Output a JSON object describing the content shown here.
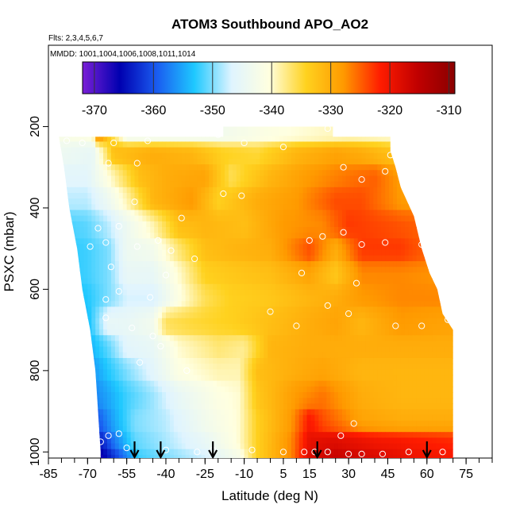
{
  "chart_data": {
    "type": "heatmap",
    "title": "ATOM3 Southbound APO_AO2",
    "flights_note": "Flts: 2,3,4,5,6,7",
    "dates_note": "MMDD: 1001,1004,1006,1008,1011,1014",
    "xlabel": "Latitude (deg N)",
    "ylabel": "PSXC (mbar)",
    "xlim": [
      -85,
      85
    ],
    "ylim": [
      1015,
      0
    ],
    "x_tick_labels": [
      "-85",
      "-70",
      "-55",
      "-40",
      "-25",
      "-10",
      "5",
      "15",
      "30",
      "45",
      "60",
      "75"
    ],
    "x_tick_values": [
      -85,
      -70,
      -55,
      -40,
      -25,
      -10,
      5,
      15,
      30,
      45,
      60,
      75
    ],
    "y_tick_labels": [
      "200",
      "400",
      "600",
      "800",
      "1000"
    ],
    "y_tick_values": [
      200,
      400,
      600,
      800,
      1000
    ],
    "colorbar": {
      "range": [
        -372,
        -309
      ],
      "tick_labels": [
        "-370",
        "-360",
        "-350",
        "-340",
        "-330",
        "-320",
        "-310"
      ],
      "tick_values": [
        -370,
        -360,
        -350,
        -340,
        -330,
        -320,
        -310
      ],
      "colors": [
        "#7a1fd6",
        "#0000b0",
        "#1a5cf0",
        "#1ec8ff",
        "#dff4ff",
        "#ffffe0",
        "#ffd21f",
        "#ff9a00",
        "#ff1c00",
        "#c00000",
        "#8a0000"
      ]
    },
    "arrow_latitudes": [
      -52,
      -42,
      -22,
      18,
      60
    ],
    "ceiling_profile": [
      {
        "lat": -68,
        "p": 225
      },
      {
        "lat": -50,
        "p": 225
      },
      {
        "lat": -35,
        "p": 225
      },
      {
        "lat": -18,
        "p": 225
      },
      {
        "lat": -18,
        "p": 200
      },
      {
        "lat": 24,
        "p": 200
      },
      {
        "lat": 24,
        "p": 225
      },
      {
        "lat": 46,
        "p": 225
      },
      {
        "lat": 46,
        "p": 260
      },
      {
        "lat": 48,
        "p": 300
      },
      {
        "lat": 50,
        "p": 350
      },
      {
        "lat": 55,
        "p": 420
      },
      {
        "lat": 58,
        "p": 500
      },
      {
        "lat": 61,
        "p": 560
      },
      {
        "lat": 64,
        "p": 600
      },
      {
        "lat": 66,
        "p": 660
      },
      {
        "lat": 70,
        "p": 700
      }
    ],
    "south_edge_profile": [
      {
        "p": 225,
        "lat": -81
      },
      {
        "p": 300,
        "lat": -79
      },
      {
        "p": 400,
        "lat": -77
      },
      {
        "p": 500,
        "lat": -74
      },
      {
        "p": 600,
        "lat": -72
      },
      {
        "p": 700,
        "lat": -69
      },
      {
        "p": 800,
        "lat": -67
      },
      {
        "p": 900,
        "lat": -66
      },
      {
        "p": 1000,
        "lat": -65
      }
    ],
    "sample_points": [
      {
        "lat": -78,
        "p": 235
      },
      {
        "lat": -72,
        "p": 240
      },
      {
        "lat": -60,
        "p": 240
      },
      {
        "lat": -47,
        "p": 235
      },
      {
        "lat": -62,
        "p": 290
      },
      {
        "lat": -51,
        "p": 290
      },
      {
        "lat": -20,
        "p": 220
      },
      {
        "lat": -10,
        "p": 240
      },
      {
        "lat": 5,
        "p": 250
      },
      {
        "lat": 22,
        "p": 205
      },
      {
        "lat": -18,
        "p": 365
      },
      {
        "lat": -11,
        "p": 370
      },
      {
        "lat": 28,
        "p": 300
      },
      {
        "lat": 35,
        "p": 330
      },
      {
        "lat": 44,
        "p": 310
      },
      {
        "lat": -52,
        "p": 385
      },
      {
        "lat": -58,
        "p": 445
      },
      {
        "lat": -34,
        "p": 425
      },
      {
        "lat": -66,
        "p": 450
      },
      {
        "lat": -69,
        "p": 495
      },
      {
        "lat": -63,
        "p": 485
      },
      {
        "lat": -51,
        "p": 495
      },
      {
        "lat": -43,
        "p": 480
      },
      {
        "lat": -38,
        "p": 505
      },
      {
        "lat": 15,
        "p": 480
      },
      {
        "lat": 20,
        "p": 470
      },
      {
        "lat": 28,
        "p": 460
      },
      {
        "lat": 35,
        "p": 490
      },
      {
        "lat": 44,
        "p": 485
      },
      {
        "lat": 58,
        "p": 490
      },
      {
        "lat": 68,
        "p": 445
      },
      {
        "lat": -29,
        "p": 525
      },
      {
        "lat": -61,
        "p": 545
      },
      {
        "lat": -40,
        "p": 565
      },
      {
        "lat": 12,
        "p": 560
      },
      {
        "lat": 33,
        "p": 585
      },
      {
        "lat": -63,
        "p": 625
      },
      {
        "lat": -58,
        "p": 605
      },
      {
        "lat": -46,
        "p": 620
      },
      {
        "lat": 0,
        "p": 655
      },
      {
        "lat": 22,
        "p": 640
      },
      {
        "lat": 30,
        "p": 660
      },
      {
        "lat": -63,
        "p": 670
      },
      {
        "lat": -53,
        "p": 695
      },
      {
        "lat": -45,
        "p": 715
      },
      {
        "lat": 10,
        "p": 690
      },
      {
        "lat": 48,
        "p": 690
      },
      {
        "lat": 58,
        "p": 690
      },
      {
        "lat": 68,
        "p": 675
      },
      {
        "lat": -42,
        "p": 740
      },
      {
        "lat": -50,
        "p": 780
      },
      {
        "lat": -32,
        "p": 800
      },
      {
        "lat": 32,
        "p": 930
      },
      {
        "lat": 27,
        "p": 960
      },
      {
        "lat": -67,
        "p": 950
      },
      {
        "lat": -62,
        "p": 960
      },
      {
        "lat": -58,
        "p": 955
      },
      {
        "lat": -65,
        "p": 975
      },
      {
        "lat": -55,
        "p": 990
      },
      {
        "lat": -40,
        "p": 995
      },
      {
        "lat": -28,
        "p": 1000
      },
      {
        "lat": -22,
        "p": 995
      },
      {
        "lat": -7,
        "p": 995
      },
      {
        "lat": 5,
        "p": 1000
      },
      {
        "lat": 13,
        "p": 1000
      },
      {
        "lat": 17,
        "p": 1000
      },
      {
        "lat": 22,
        "p": 1000
      },
      {
        "lat": 30,
        "p": 1005
      },
      {
        "lat": 35,
        "p": 1005
      },
      {
        "lat": 43,
        "p": 1005
      },
      {
        "lat": 53,
        "p": 1000
      },
      {
        "lat": 66,
        "p": 1000
      },
      {
        "lat": 65,
        "p": 580
      },
      {
        "lat": 46,
        "p": 270
      }
    ],
    "field_rows": [
      {
        "p": 225,
        "lat": [
          -80,
          -68,
          -66,
          -55,
          -40,
          -18,
          0,
          30,
          50,
          70
        ],
        "val": [
          -342,
          -341,
          -327,
          -343,
          -343,
          -343,
          -341,
          -339,
          -340,
          -341
        ]
      },
      {
        "p": 260,
        "lat": [
          -80,
          -68,
          -60,
          -45,
          -30,
          -18,
          -5,
          10,
          25,
          35,
          50,
          70
        ],
        "val": [
          -344,
          -345,
          -332,
          -330,
          -331,
          -334,
          -335,
          -331,
          -329,
          -330,
          -333,
          -334
        ]
      },
      {
        "p": 320,
        "lat": [
          -80,
          -70,
          -60,
          -50,
          -40,
          -25,
          -15,
          0,
          15,
          30,
          40,
          55,
          70
        ],
        "val": [
          -346,
          -346,
          -339,
          -332,
          -330,
          -329,
          -336,
          -331,
          -328,
          -326,
          -325,
          -330,
          -331
        ]
      },
      {
        "p": 380,
        "lat": [
          -80,
          -70,
          -62,
          -55,
          -45,
          -30,
          -20,
          -5,
          10,
          25,
          35,
          50,
          70
        ],
        "val": [
          -348,
          -348,
          -344,
          -339,
          -331,
          -328,
          -334,
          -330,
          -328,
          -324,
          -324,
          -328,
          -329
        ]
      },
      {
        "p": 440,
        "lat": [
          -80,
          -70,
          -62,
          -55,
          -45,
          -35,
          -25,
          -10,
          5,
          20,
          30,
          45,
          70
        ],
        "val": [
          -352,
          -351,
          -348,
          -344,
          -339,
          -332,
          -331,
          -332,
          -328,
          -327,
          -323,
          -324,
          -326
        ]
      },
      {
        "p": 500,
        "lat": [
          -80,
          -70,
          -62,
          -55,
          -45,
          -35,
          -25,
          -15,
          0,
          15,
          25,
          35,
          50,
          70
        ],
        "val": [
          -353,
          -352,
          -350,
          -344,
          -343,
          -337,
          -332,
          -331,
          -330,
          -324,
          -330,
          -323,
          -323,
          -327
        ]
      },
      {
        "p": 560,
        "lat": [
          -80,
          -70,
          -62,
          -55,
          -45,
          -35,
          -25,
          -15,
          0,
          15,
          25,
          35,
          50,
          70
        ],
        "val": [
          -353,
          -352,
          -350,
          -345,
          -345,
          -340,
          -334,
          -333,
          -332,
          -329,
          -333,
          -327,
          -327,
          -328
        ]
      },
      {
        "p": 620,
        "lat": [
          -80,
          -70,
          -62,
          -55,
          -45,
          -35,
          -25,
          -15,
          0,
          15,
          25,
          35,
          50,
          70
        ],
        "val": [
          -354,
          -353,
          -350,
          -347,
          -347,
          -341,
          -336,
          -334,
          -333,
          -331,
          -330,
          -328,
          -327,
          -327
        ]
      },
      {
        "p": 680,
        "lat": [
          -80,
          -70,
          -62,
          -55,
          -45,
          -40,
          -30,
          -15,
          0,
          15,
          25,
          35,
          50,
          70
        ],
        "val": [
          -355,
          -354,
          -345,
          -345,
          -343,
          -336,
          -335,
          -334,
          -332,
          -330,
          -329,
          -331,
          -328,
          -329
        ]
      },
      {
        "p": 740,
        "lat": [
          -80,
          -70,
          -62,
          -55,
          -45,
          -35,
          -20,
          -10,
          0,
          15,
          25,
          35,
          50,
          70
        ],
        "val": [
          -356,
          -355,
          -351,
          -346,
          -345,
          -340,
          -337,
          -338,
          -331,
          -330,
          -330,
          -330,
          -330,
          -330
        ]
      },
      {
        "p": 800,
        "lat": [
          -80,
          -70,
          -62,
          -55,
          -45,
          -35,
          -20,
          -12,
          -5,
          10,
          20,
          35,
          50,
          70
        ],
        "val": [
          -358,
          -357,
          -353,
          -350,
          -346,
          -341,
          -339,
          -339,
          -332,
          -330,
          -329,
          -331,
          -331,
          -331
        ]
      },
      {
        "p": 860,
        "lat": [
          -80,
          -70,
          -62,
          -55,
          -45,
          -35,
          -20,
          -12,
          -5,
          10,
          20,
          35,
          50,
          70
        ],
        "val": [
          -359,
          -358,
          -355,
          -352,
          -349,
          -345,
          -341,
          -340,
          -333,
          -328,
          -326,
          -330,
          -331,
          -331
        ]
      },
      {
        "p": 920,
        "lat": [
          -80,
          -70,
          -64,
          -60,
          -52,
          -40,
          -25,
          -12,
          -5,
          8,
          15,
          20,
          35,
          50,
          70
        ],
        "val": [
          -364,
          -363,
          -358,
          -355,
          -350,
          -348,
          -343,
          -340,
          -334,
          -328,
          -321,
          -324,
          -329,
          -330,
          -330
        ]
      },
      {
        "p": 975,
        "lat": [
          -80,
          -70,
          -64,
          -60,
          -52,
          -42,
          -25,
          -12,
          -5,
          8,
          15,
          25,
          40,
          55,
          70
        ],
        "val": [
          -368,
          -366,
          -363,
          -358,
          -351,
          -349,
          -345,
          -340,
          -334,
          -327,
          -319,
          -318,
          -320,
          -321,
          -322
        ]
      },
      {
        "p": 1010,
        "lat": [
          -80,
          -70,
          -64,
          -58,
          -50,
          -40,
          -25,
          -12,
          -5,
          8,
          15,
          25,
          40,
          55,
          70
        ],
        "val": [
          -370,
          -369,
          -366,
          -360,
          -352,
          -350,
          -347,
          -342,
          -334,
          -327,
          -318,
          -316,
          -318,
          -320,
          -321
        ]
      }
    ]
  }
}
